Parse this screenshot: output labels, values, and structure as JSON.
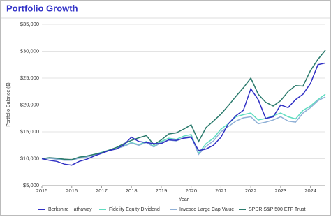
{
  "chart_data": {
    "type": "line",
    "title": "Portfolio Growth",
    "x_label": "Year",
    "y_label": "Portfolio Balance ($)",
    "x": [
      2015,
      2015.25,
      2015.5,
      2015.75,
      2016,
      2016.25,
      2016.5,
      2016.75,
      2017,
      2017.25,
      2017.5,
      2017.75,
      2018,
      2018.25,
      2018.5,
      2018.75,
      2019,
      2019.25,
      2019.5,
      2019.75,
      2020,
      2020.25,
      2020.5,
      2020.75,
      2021,
      2021.25,
      2021.5,
      2021.75,
      2022,
      2022.25,
      2022.5,
      2022.75,
      2023,
      2023.25,
      2023.5,
      2023.75,
      2024,
      2024.25,
      2024.5
    ],
    "series": [
      {
        "name": "Berkshire Hathaway",
        "color": "#2f2fc4",
        "values": [
          10000,
          9700,
          9500,
          9000,
          8800,
          9500,
          9900,
          10500,
          11000,
          11500,
          11800,
          12600,
          14000,
          13200,
          13000,
          12800,
          12800,
          13500,
          13400,
          13800,
          14000,
          11500,
          11800,
          12500,
          14000,
          16500,
          18000,
          19000,
          23000,
          21000,
          17500,
          17800,
          20000,
          19500,
          21000,
          22000,
          24000,
          27500,
          27800
        ]
      },
      {
        "name": "Fidelity Equity Dividend",
        "color": "#5fdcc0",
        "values": [
          10000,
          10100,
          10000,
          9800,
          9800,
          10200,
          10400,
          10800,
          11200,
          11600,
          12000,
          12400,
          13000,
          12600,
          13200,
          12300,
          13200,
          13800,
          13600,
          14200,
          14500,
          11000,
          12800,
          13800,
          15500,
          16500,
          17800,
          18200,
          18500,
          17200,
          17500,
          18000,
          18500,
          17800,
          17400,
          19000,
          19800,
          21000,
          22000
        ]
      },
      {
        "name": "Invesco Large Cap Value",
        "color": "#8fb0d6",
        "values": [
          10000,
          10100,
          9900,
          9700,
          9700,
          10100,
          10300,
          10700,
          11100,
          11500,
          11900,
          12300,
          12900,
          12500,
          13000,
          12200,
          13000,
          13500,
          13300,
          13900,
          14200,
          10800,
          12300,
          13300,
          15000,
          16000,
          17000,
          17600,
          17800,
          16500,
          16800,
          17200,
          17800,
          17000,
          16800,
          18500,
          19500,
          20800,
          21500
        ]
      },
      {
        "name": "SPDR S&P 500 ETF Trust",
        "color": "#2a7a6c",
        "values": [
          10000,
          10200,
          10100,
          9900,
          9800,
          10300,
          10500,
          10800,
          11100,
          11600,
          12100,
          12800,
          13400,
          13900,
          14300,
          12600,
          13500,
          14600,
          14800,
          15500,
          16300,
          13200,
          15800,
          17000,
          18300,
          19900,
          21600,
          23200,
          25000,
          22000,
          20500,
          19800,
          20800,
          22500,
          23600,
          23500,
          26400,
          28500,
          30200
        ]
      }
    ],
    "xlim": [
      2015,
      2024.5
    ],
    "xticks": [
      2015,
      2016,
      2017,
      2018,
      2019,
      2020,
      2021,
      2022,
      2023,
      2024
    ],
    "ylim": [
      5000,
      35000
    ],
    "yticks": [
      {
        "value": 5000,
        "label": "$5,000"
      },
      {
        "value": 10000,
        "label": "$10,000"
      },
      {
        "value": 15000,
        "label": "$15,000"
      },
      {
        "value": 20000,
        "label": "$20,000"
      },
      {
        "value": 25000,
        "label": "$25,000"
      },
      {
        "value": 30000,
        "label": "$30,000"
      },
      {
        "value": 35000,
        "label": "$35,000"
      }
    ],
    "grid": true
  }
}
